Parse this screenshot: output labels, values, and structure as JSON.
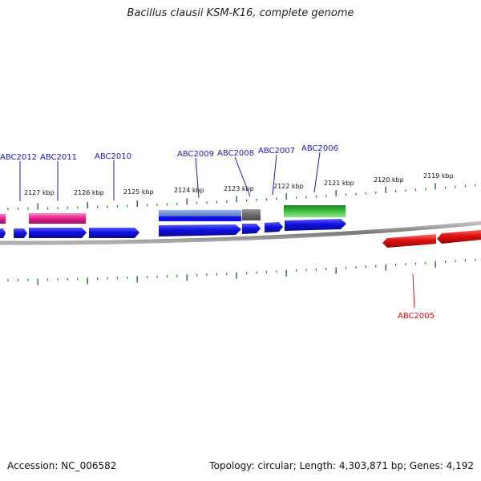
{
  "title": "Bacillus clausii KSM-K16, complete genome",
  "accession": "Accession: NC_006582",
  "summary": "Topology: circular; Length: 4,303,871 bp; Genes: 4,192",
  "colors": {
    "label_blue": "#1a1ab8",
    "label_red": "#d01010",
    "gene_blue": "#1010e0",
    "gene_pink": "#e0208a",
    "gene_green": "#30b030",
    "gene_gray": "#707070",
    "gene_lightblue": "#6a8ed0",
    "gene_red": "#e01010",
    "tick_green": "#2a8a2a",
    "backbone": "#8a8a8a"
  },
  "kbp_labels": [
    "2127 kbp",
    "2126 kbp",
    "2125 kbp",
    "2124 kbp",
    "2123 kbp",
    "2122 kbp",
    "2121 kbp",
    "2120 kbp",
    "2119 kbp"
  ],
  "gene_labels": [
    "ABC2012",
    "ABC2011",
    "ABC2010",
    "ABC2009",
    "ABC2008",
    "ABC2007",
    "ABC2006",
    "ABC2005"
  ]
}
